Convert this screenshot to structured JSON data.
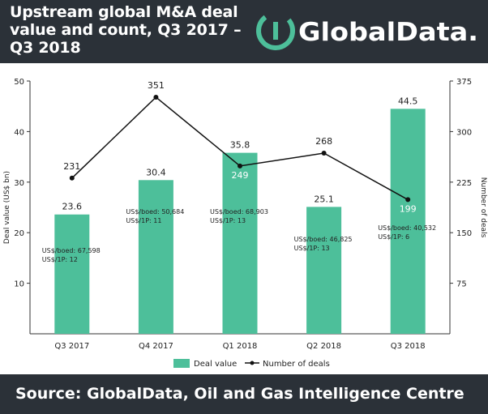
{
  "header": {
    "title_line1": "Upstream global M&A deal",
    "title_line2": "value and count, Q3 2017 –",
    "title_line3": "Q3 2018",
    "brand": "GlobalData."
  },
  "footer": {
    "source": "Source: GlobalData, Oil and Gas Intelligence Centre"
  },
  "colors": {
    "header_bg": "#2b3138",
    "bar": "#4dbf9a",
    "brand_accent": "#4dbf9a",
    "line": "#111111"
  },
  "chart_data": {
    "type": "bar",
    "categories": [
      "Q3 2017",
      "Q4 2017",
      "Q1 2018",
      "Q2 2018",
      "Q3 2018"
    ],
    "series": [
      {
        "name": "Deal value",
        "type": "bar",
        "axis": "left",
        "values": [
          23.6,
          30.4,
          35.8,
          25.1,
          44.5
        ]
      },
      {
        "name": "Number of deals",
        "type": "line",
        "axis": "right",
        "values": [
          231,
          351,
          249,
          268,
          199
        ]
      }
    ],
    "value_labels": [
      "23.6",
      "30.4",
      "35.8",
      "25.1",
      "44.5"
    ],
    "count_labels": [
      "231",
      "351",
      "249",
      "268",
      "199"
    ],
    "annotations": [
      {
        "line1": "US$/boed: 67,598",
        "line2": "US$/1P: 12"
      },
      {
        "line1": "US$/boed: 50,684",
        "line2": "US$/1P: 11"
      },
      {
        "line1": "US$/boed: 68,903",
        "line2": "US$/1P: 13"
      },
      {
        "line1": "US$/boed: 46,825",
        "line2": "US$/1P: 13"
      },
      {
        "line1": "US$/boed: 40,532",
        "line2": "US$/1P: 6"
      }
    ],
    "ylabel": "Deal value (US$ bn)",
    "y2label": "Number of deals",
    "ylim": [
      0,
      50
    ],
    "y2lim": [
      0,
      375
    ],
    "yticks": [
      "10",
      "20",
      "30",
      "40",
      "50"
    ],
    "y2ticks": [
      "75",
      "150",
      "225",
      "300",
      "375"
    ],
    "legend": {
      "position": "bottom",
      "bar_label": "Deal value",
      "line_label": "Number of deals"
    }
  }
}
